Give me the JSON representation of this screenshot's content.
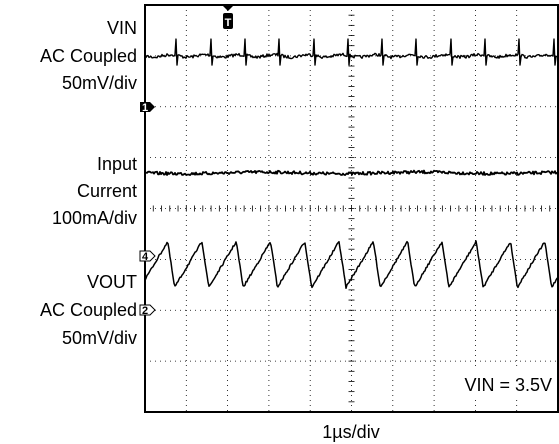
{
  "chart_data": {
    "type": "line",
    "title": "",
    "xlabel": "1µs/div",
    "grid": true,
    "divisions": {
      "x": 10,
      "y": 8
    },
    "annotation": "VIN = 3.5V",
    "trigger_marker": "T",
    "reference_markers": [
      "1",
      "4",
      "2"
    ],
    "channels": [
      {
        "id": "1",
        "name": "VIN",
        "label_lines": [
          "VIN",
          "AC Coupled",
          "50mV/div"
        ],
        "scale": "50mV/div",
        "coupling": "AC Coupled",
        "baseline_div": 1.0,
        "ripple_div": 0.04,
        "waveform": "noisy flat trace with narrow switching spikes",
        "switching_period_div": 0.83,
        "spike_amplitude_div": 0.33
      },
      {
        "id": "3",
        "name": "Input Current",
        "label_lines": [
          "Input",
          "Current",
          "100mA/div"
        ],
        "scale": "100mA/div",
        "baseline_div": 3.3,
        "ripple_div": 0.03,
        "waveform": "flat noisy trace"
      },
      {
        "id": "2",
        "name": "VOUT",
        "label_lines": [
          "VOUT",
          "AC Coupled",
          "50mV/div"
        ],
        "scale": "50mV/div",
        "coupling": "AC Coupled",
        "baseline_div": 5.1,
        "waveform": "sawtooth ripple",
        "switching_period_div": 0.83,
        "peak_to_peak_div": 0.9
      }
    ]
  }
}
